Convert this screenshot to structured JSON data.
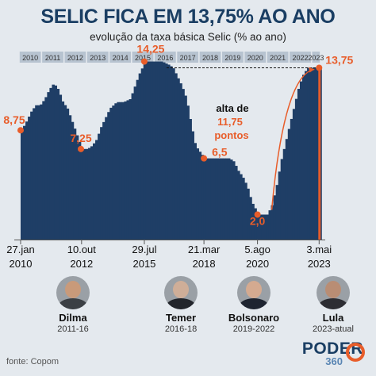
{
  "header": {
    "title": "SELIC FICA EM 13,75% AO ANO",
    "subtitle": "evolução da taxa básica Selic (% ao ano)"
  },
  "colors": {
    "bars": "#1f3e66",
    "accent": "#e85d2a",
    "year_band": "#b7c3d0",
    "text_dark": "#1a3e63"
  },
  "chart_data": {
    "type": "bar",
    "x_start": 2010,
    "x_end": 2023.4,
    "ylim": [
      0,
      16
    ],
    "year_labels": [
      "2010",
      "2011",
      "2012",
      "2013",
      "2014",
      "2015",
      "2016",
      "2017",
      "2018",
      "2019",
      "2020",
      "2021",
      "2022",
      "2023"
    ],
    "series": [
      {
        "values_x": [
          2010.07,
          2010.3,
          2010.5,
          2010.7,
          2010.9,
          2011.1,
          2011.3,
          2011.5,
          2011.7,
          2011.9,
          2012.1,
          2012.3,
          2012.5,
          2012.75,
          2013.0,
          2013.2,
          2013.4,
          2013.6,
          2013.8,
          2014.0,
          2014.3,
          2014.6,
          2014.9,
          2015.1,
          2015.3,
          2015.57,
          2015.8,
          2016.0,
          2016.3,
          2016.6,
          2016.8,
          2017.0,
          2017.2,
          2017.4,
          2017.6,
          2017.8,
          2018.0,
          2018.22,
          2018.5,
          2018.8,
          2019.0,
          2019.3,
          2019.5,
          2019.7,
          2019.9,
          2020.1,
          2020.3,
          2020.6,
          2020.8,
          2021.0,
          2021.2,
          2021.4,
          2021.6,
          2021.8,
          2022.0,
          2022.2,
          2022.4,
          2022.6,
          2022.8,
          2023.0,
          2023.2,
          2023.34
        ],
        "values_y": [
          8.75,
          9.5,
          10.25,
          10.75,
          10.75,
          11.25,
          12.0,
          12.5,
          12.0,
          11.0,
          10.5,
          9.5,
          8.5,
          7.25,
          7.25,
          7.5,
          8.0,
          9.0,
          9.75,
          10.5,
          11.0,
          11.0,
          11.25,
          12.25,
          13.25,
          14.25,
          14.25,
          14.25,
          14.25,
          14.0,
          13.75,
          13.0,
          12.25,
          11.25,
          9.25,
          7.5,
          7.0,
          6.5,
          6.5,
          6.5,
          6.5,
          6.5,
          6.25,
          5.5,
          5.0,
          4.25,
          3.0,
          2.0,
          2.0,
          2.0,
          2.75,
          4.25,
          6.25,
          7.75,
          9.25,
          10.75,
          12.25,
          13.25,
          13.75,
          13.75,
          13.75,
          13.75
        ]
      }
    ],
    "annotations": [
      {
        "x": 2010.07,
        "y": 8.75,
        "label": "8,75"
      },
      {
        "x": 2012.75,
        "y": 7.25,
        "label": "7,25"
      },
      {
        "x": 2015.57,
        "y": 14.25,
        "label": "14,25"
      },
      {
        "x": 2018.22,
        "y": 6.5,
        "label": "6,5"
      },
      {
        "x": 2020.6,
        "y": 2.0,
        "label": "2,0"
      },
      {
        "x": 2023.34,
        "y": 13.75,
        "label": "13,75"
      }
    ],
    "callout": {
      "line1": "alta de",
      "line2": "11,75",
      "line3": "pontos"
    },
    "date_marks": [
      {
        "x": 2010.07,
        "day": "27.jan",
        "year": "2010"
      },
      {
        "x": 2012.78,
        "day": "10.out",
        "year": "2012"
      },
      {
        "x": 2015.57,
        "day": "29.jul",
        "year": "2015"
      },
      {
        "x": 2018.22,
        "day": "21.mar",
        "year": "2018"
      },
      {
        "x": 2020.6,
        "day": "5.ago",
        "year": "2020"
      },
      {
        "x": 2023.34,
        "day": "3.mai",
        "year": "2023"
      }
    ]
  },
  "presidents": [
    {
      "name": "Dilma",
      "term": "2011-16",
      "icon": "dilma-photo"
    },
    {
      "name": "Temer",
      "term": "2016-18",
      "icon": "temer-photo"
    },
    {
      "name": "Bolsonaro",
      "term": "2019-2022",
      "icon": "bolsonaro-photo"
    },
    {
      "name": "Lula",
      "term": "2023-atual",
      "icon": "lula-photo"
    }
  ],
  "footer": {
    "source": "fonte: Copom",
    "logo_main": "PODER",
    "logo_sub": "360"
  }
}
